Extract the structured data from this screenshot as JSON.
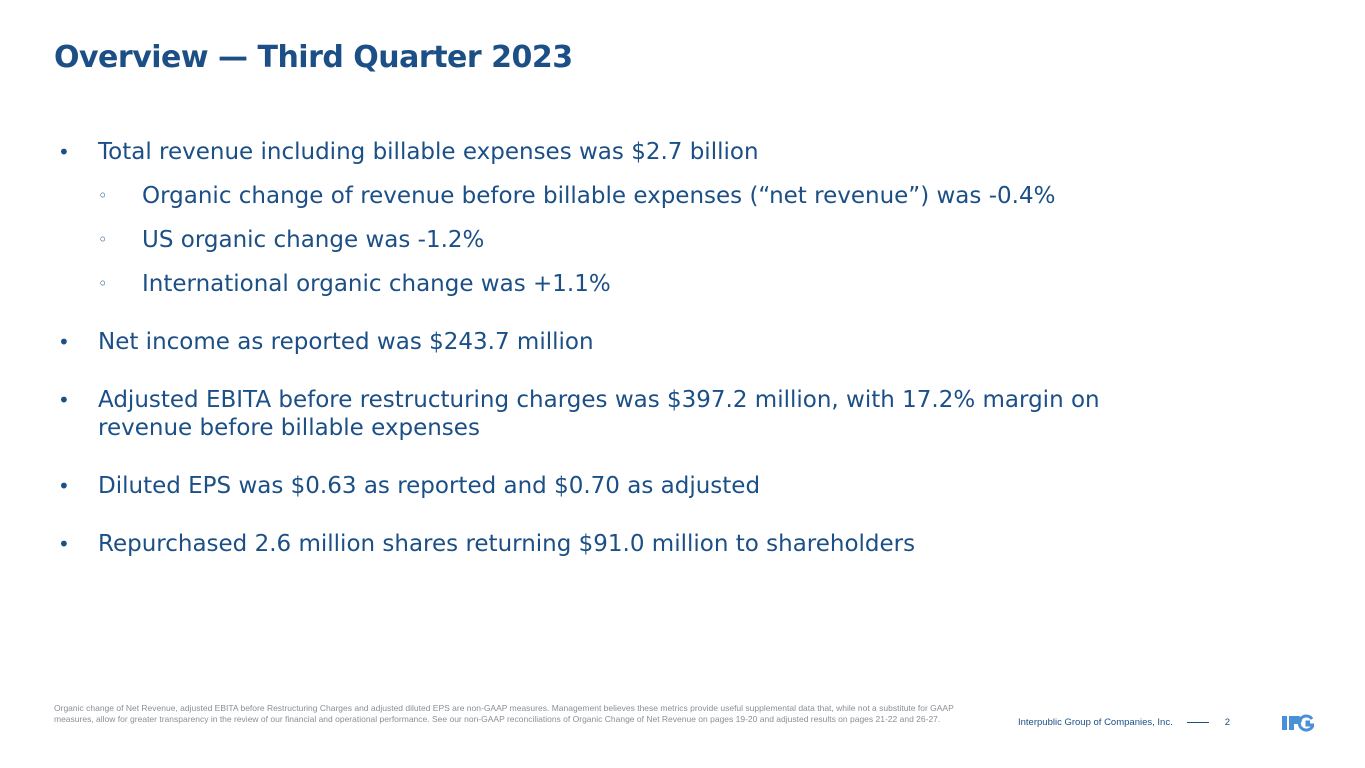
{
  "slide": {
    "title": "Overview — Third Quarter 2023",
    "bullets": {
      "b1": "Total revenue including billable expenses was $2.7 billion",
      "b1_sub": [
        "Organic change of revenue before billable expenses (“net revenue”) was -0.4%",
        "US organic change was -1.2%",
        "International organic change was +1.1%"
      ],
      "b2": "Net income as reported was $243.7 million",
      "b3": "Adjusted EBITA before restructuring charges was $397.2 million, with 17.2% margin on revenue before billable expenses",
      "b4": "Diluted EPS was $0.63 as reported and $0.70 as adjusted",
      "b5": "Repurchased 2.6 million shares returning $91.0 million to shareholders"
    },
    "footnote": "Organic change of Net Revenue, adjusted EBITA before Restructuring Charges and adjusted diluted EPS are non-GAAP measures. Management believes these metrics provide useful supplemental data that, while not a substitute for GAAP measures, allow for greater transparency in the review of our financial and operational performance. See our non-GAAP reconciliations of Organic Change of Net Revenue on pages 19-20 and adjusted results on pages 21-22 and 26-27.",
    "footer": {
      "company": "Interpublic Group of Companies, Inc.",
      "page_number": "2"
    },
    "logo_text": "IPG",
    "colors": {
      "primary": "#1b4f86",
      "footnote": "#8a8f96"
    }
  }
}
